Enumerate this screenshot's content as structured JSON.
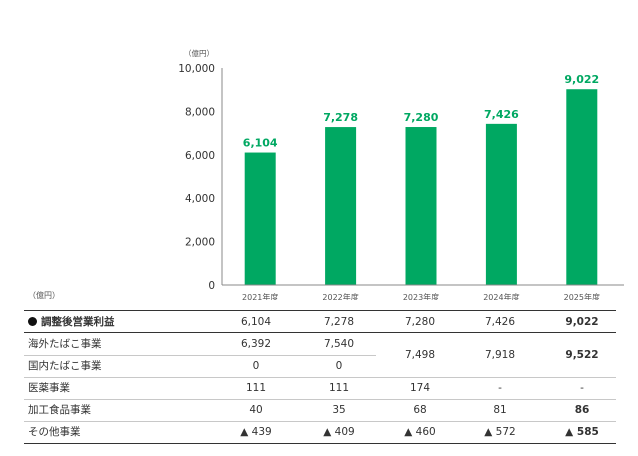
{
  "chart_data": {
    "type": "bar",
    "unit": "（億円）",
    "categories": [
      "2021年度",
      "2022年度",
      "2023年度",
      "2024年度",
      "2025年度"
    ],
    "values": [
      6104,
      7278,
      7280,
      7426,
      9022
    ],
    "value_labels": [
      "6,104",
      "7,278",
      "7,280",
      "7,426",
      "9,022"
    ],
    "ylim": [
      0,
      10000
    ],
    "yticks": [
      "0",
      "2,000",
      "4,000",
      "6,000",
      "8,000",
      "10,000"
    ],
    "bar_color": "#00a862",
    "label_color": "#00a862"
  },
  "table": {
    "unit": "（億円）",
    "rows": [
      {
        "label": "調整後営業利益",
        "bullet": true,
        "bold": true,
        "cells": [
          "6,104",
          "7,278",
          "7,280",
          "7,426",
          "9,022"
        ]
      },
      {
        "label": "海外たばこ事業",
        "cells": [
          "6,392",
          "7,540",
          "",
          "",
          ""
        ]
      },
      {
        "label": "国内たばこ事業",
        "cells": [
          "0",
          "0",
          "",
          "",
          ""
        ]
      },
      {
        "label": "医薬事業",
        "cells": [
          "111",
          "111",
          "174",
          "-",
          "-"
        ]
      },
      {
        "label": "加工食品事業",
        "cells": [
          "40",
          "35",
          "68",
          "81",
          "86"
        ]
      },
      {
        "label": "その他事業",
        "cells": [
          "▲ 439",
          "▲ 409",
          "▲ 460",
          "▲ 572",
          "▲ 585"
        ]
      }
    ],
    "merged_tobacco": [
      "7,498",
      "7,918",
      "9,522"
    ]
  }
}
